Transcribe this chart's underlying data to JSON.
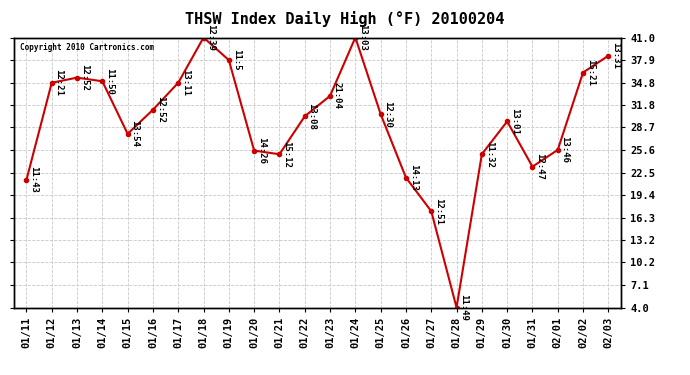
{
  "title": "THSW Index Daily High (°F) 20100204",
  "copyright": "Copyright 2010 Cartronics.com",
  "x_labels": [
    "01/11",
    "01/12",
    "01/13",
    "01/14",
    "01/15",
    "01/16",
    "01/17",
    "01/18",
    "01/19",
    "01/20",
    "01/21",
    "01/22",
    "01/23",
    "01/24",
    "01/25",
    "01/26",
    "01/27",
    "01/28",
    "01/29",
    "01/30",
    "01/31",
    "02/01",
    "02/02",
    "02/03"
  ],
  "y_values": [
    21.5,
    34.8,
    35.5,
    35.0,
    27.8,
    31.1,
    34.8,
    41.0,
    37.9,
    25.5,
    25.0,
    30.2,
    33.0,
    41.0,
    30.5,
    21.8,
    17.2,
    4.0,
    25.0,
    29.5,
    23.3,
    25.6,
    36.2,
    38.5
  ],
  "point_labels": [
    "11:43",
    "12:21",
    "12:52",
    "11:50",
    "13:54",
    "12:52",
    "13:11",
    "12:39",
    "11:5",
    "14:26",
    "15:12",
    "13:08",
    "21:04",
    "13:03",
    "12:30",
    "14:13",
    "12:51",
    "11:49",
    "11:32",
    "13:01",
    "12:47",
    "13:46",
    "15:21",
    "13:31"
  ],
  "y_ticks": [
    4.0,
    7.1,
    10.2,
    13.2,
    16.3,
    19.4,
    22.5,
    25.6,
    28.7,
    31.8,
    34.8,
    37.9,
    41.0
  ],
  "ylim": [
    4.0,
    41.0
  ],
  "line_color": "#cc0000",
  "marker_color": "#cc0000",
  "bg_color": "#ffffff",
  "grid_color": "#c8c8c8",
  "title_fontsize": 11,
  "tick_fontsize": 7.5,
  "point_label_fontsize": 6.5
}
